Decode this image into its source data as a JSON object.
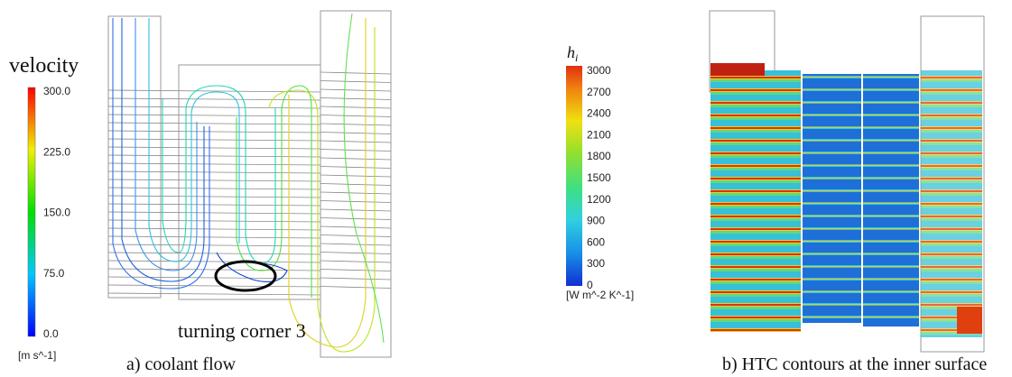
{
  "panel_a": {
    "legend_title": "velocity",
    "ticks": [
      "300.0",
      "225.0",
      "150.0",
      "75.0",
      "0.0"
    ],
    "unit": "[m s^-1]",
    "annotation": "turning corner 3",
    "caption": "a) coolant flow"
  },
  "panel_b": {
    "legend_title": "h",
    "legend_title_sub": "i",
    "ticks": [
      "3000",
      "2700",
      "2400",
      "2100",
      "1800",
      "1500",
      "1200",
      "900",
      "600",
      "300",
      "0"
    ],
    "unit": "[W m^-2 K^-1]",
    "caption": "b) HTC contours at the inner surface"
  }
}
